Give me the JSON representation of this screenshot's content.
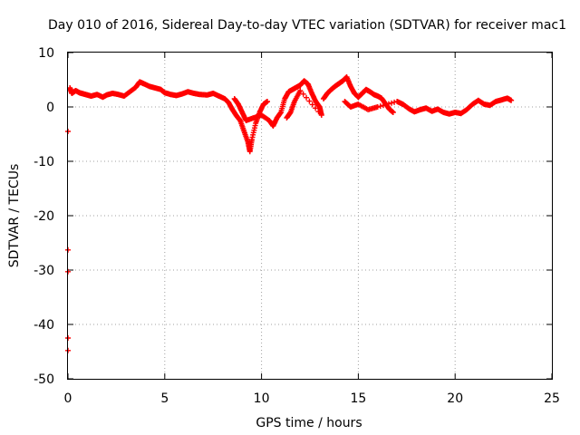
{
  "chart_data": {
    "type": "scatter",
    "title": "Day 010 of 2016, Sidereal Day-to-day VTEC variation (SDTVAR) for receiver mac1",
    "xlabel": "GPS time / hours",
    "ylabel": "SDTVAR / TECUs",
    "xlim": [
      0,
      25
    ],
    "ylim": [
      -50,
      10
    ],
    "xticks": [
      0,
      5,
      10,
      15,
      20,
      25
    ],
    "yticks": [
      -50,
      -40,
      -30,
      -20,
      -10,
      0,
      10
    ],
    "grid": true,
    "marker": "plus",
    "color": "#ff0000",
    "series": [
      {
        "name": "SDTVAR",
        "points": [
          [
            0.1,
            3.5
          ],
          [
            0.2,
            2.5
          ],
          [
            0.4,
            3.0
          ],
          [
            0.6,
            2.6
          ],
          [
            0.8,
            2.4
          ],
          [
            1.0,
            2.2
          ],
          [
            1.2,
            2.0
          ],
          [
            1.5,
            2.3
          ],
          [
            1.8,
            1.8
          ],
          [
            2.0,
            2.2
          ],
          [
            2.3,
            2.5
          ],
          [
            2.6,
            2.3
          ],
          [
            2.9,
            2.0
          ],
          [
            3.2,
            2.8
          ],
          [
            3.5,
            3.6
          ],
          [
            3.7,
            4.6
          ],
          [
            3.9,
            4.3
          ],
          [
            4.2,
            3.8
          ],
          [
            4.5,
            3.5
          ],
          [
            4.8,
            3.2
          ],
          [
            5.0,
            2.6
          ],
          [
            5.3,
            2.3
          ],
          [
            5.6,
            2.1
          ],
          [
            5.9,
            2.4
          ],
          [
            6.2,
            2.8
          ],
          [
            6.5,
            2.5
          ],
          [
            6.8,
            2.3
          ],
          [
            7.2,
            2.2
          ],
          [
            7.5,
            2.5
          ],
          [
            7.8,
            2.0
          ],
          [
            8.1,
            1.5
          ],
          [
            8.3,
            0.8
          ],
          [
            8.5,
            -0.5
          ],
          [
            8.7,
            -1.6
          ],
          [
            8.9,
            -2.5
          ],
          [
            9.1,
            -4.5
          ],
          [
            9.3,
            -6.5
          ],
          [
            9.4,
            -8.2
          ],
          [
            9.5,
            -6.0
          ],
          [
            9.7,
            -3.0
          ],
          [
            9.9,
            -1.0
          ],
          [
            10.1,
            0.5
          ],
          [
            10.3,
            1.0
          ],
          [
            8.6,
            1.5
          ],
          [
            8.8,
            0.5
          ],
          [
            9.0,
            -1.0
          ],
          [
            9.2,
            -2.5
          ],
          [
            9.6,
            -2.0
          ],
          [
            10.0,
            -1.5
          ],
          [
            10.4,
            -2.5
          ],
          [
            10.6,
            -3.5
          ],
          [
            10.8,
            -2.0
          ],
          [
            11.0,
            -1.0
          ],
          [
            11.2,
            1.5
          ],
          [
            11.4,
            2.8
          ],
          [
            11.6,
            3.2
          ],
          [
            11.8,
            3.6
          ],
          [
            12.0,
            4.0
          ],
          [
            12.2,
            4.8
          ],
          [
            12.4,
            4.2
          ],
          [
            12.6,
            2.5
          ],
          [
            12.8,
            1.0
          ],
          [
            13.0,
            0.0
          ],
          [
            13.1,
            -1.5
          ],
          [
            12.0,
            3.0
          ],
          [
            11.7,
            1.0
          ],
          [
            11.5,
            -1.0
          ],
          [
            11.3,
            -2.0
          ],
          [
            13.2,
            1.5
          ],
          [
            13.4,
            2.5
          ],
          [
            13.6,
            3.2
          ],
          [
            13.8,
            3.8
          ],
          [
            14.0,
            4.3
          ],
          [
            14.2,
            4.8
          ],
          [
            14.4,
            5.5
          ],
          [
            14.6,
            3.8
          ],
          [
            14.8,
            2.5
          ],
          [
            15.0,
            1.8
          ],
          [
            15.2,
            2.5
          ],
          [
            15.4,
            3.2
          ],
          [
            15.6,
            2.8
          ],
          [
            15.8,
            2.3
          ],
          [
            16.0,
            2.0
          ],
          [
            16.2,
            1.6
          ],
          [
            16.4,
            0.6
          ],
          [
            16.6,
            -0.4
          ],
          [
            16.8,
            -1.0
          ],
          [
            14.3,
            1.0
          ],
          [
            14.6,
            0.0
          ],
          [
            15.0,
            0.5
          ],
          [
            15.5,
            -0.5
          ],
          [
            16.0,
            0.0
          ],
          [
            17.0,
            1.0
          ],
          [
            17.3,
            0.5
          ],
          [
            17.6,
            -0.3
          ],
          [
            17.9,
            -0.9
          ],
          [
            18.2,
            -0.5
          ],
          [
            18.5,
            -0.2
          ],
          [
            18.8,
            -0.8
          ],
          [
            19.1,
            -0.4
          ],
          [
            19.4,
            -1.0
          ],
          [
            19.7,
            -1.3
          ],
          [
            20.0,
            -1.0
          ],
          [
            20.3,
            -1.2
          ],
          [
            20.6,
            -0.5
          ],
          [
            20.9,
            0.5
          ],
          [
            21.2,
            1.2
          ],
          [
            21.5,
            0.5
          ],
          [
            21.8,
            0.3
          ],
          [
            22.1,
            1.0
          ],
          [
            22.4,
            1.3
          ],
          [
            22.7,
            1.6
          ],
          [
            22.9,
            1.2
          ],
          [
            0.0,
            -4.5
          ],
          [
            0.0,
            -26.3
          ],
          [
            0.0,
            -30.3
          ],
          [
            0.0,
            -42.5
          ],
          [
            0.0,
            -44.8
          ]
        ]
      }
    ]
  }
}
